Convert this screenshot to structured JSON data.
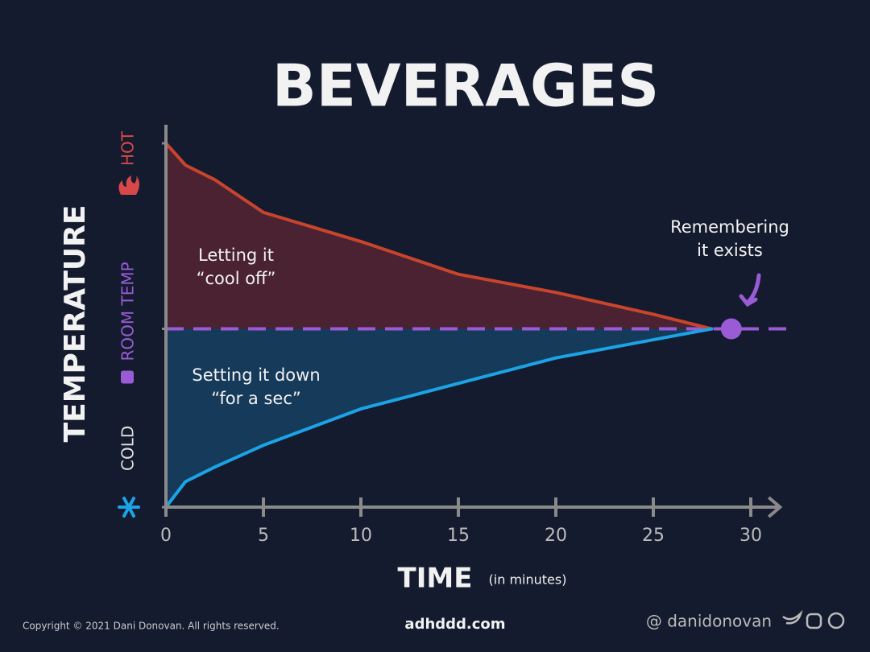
{
  "chart_data": {
    "type": "line",
    "title": "BEVERAGES",
    "x_label": "TIME",
    "x_label_note": "(in minutes)",
    "y_label": "TEMPERATURE",
    "x": [
      0,
      1,
      2.5,
      5,
      10,
      15,
      20,
      25,
      28
    ],
    "series": [
      {
        "name": "HOT",
        "color": "#c8442c",
        "fill": "#4a2232",
        "values": [
          100,
          94,
          90,
          81,
          73,
          64,
          59,
          53,
          49
        ]
      },
      {
        "name": "COLD",
        "color": "#1ba3e6",
        "fill": "#163a5a",
        "values": [
          0,
          7,
          11,
          17,
          27,
          34,
          41,
          46,
          49
        ]
      }
    ],
    "xlim": [
      0,
      31.5
    ],
    "xticks": [
      0,
      5,
      10,
      15,
      20,
      25,
      30
    ],
    "ylim": [
      0,
      100
    ],
    "yticks": [
      {
        "value": 0,
        "label": "COLD"
      },
      {
        "value": 49,
        "label": "ROOM TEMP"
      },
      {
        "value": 100,
        "label": "HOT"
      }
    ],
    "room_line": {
      "value": 49,
      "color": "#9a5bd6"
    },
    "highlight_point": {
      "x": 29,
      "y": 49,
      "color": "#9a5bd6"
    },
    "annotations": [
      {
        "lines": [
          "Letting it",
          "“cool off”"
        ]
      },
      {
        "lines": [
          "Setting it down",
          "“for a sec”"
        ]
      },
      {
        "lines": [
          "Remembering",
          "it exists"
        ]
      }
    ],
    "footer": {
      "copyright": "Copyright © 2021 Dani Donovan. All rights reserved.",
      "site": "adhddd.com",
      "handle": "@ danidonovan"
    }
  }
}
